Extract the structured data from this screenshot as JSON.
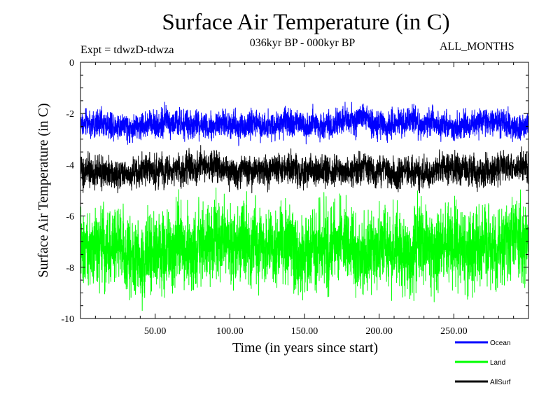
{
  "header": {
    "title": "Surface Air Temperature (in C)",
    "experiment": "Expt = tdwzD-tdwza",
    "period": "036kyr BP - 000kyr BP",
    "months": "ALL_MONTHS"
  },
  "chart_data": {
    "type": "line",
    "title": "Surface Air Temperature (in C)",
    "subtitle": "036kyr BP - 000kyr BP",
    "xlabel": "Time (in years since start)",
    "ylabel": "Surface Air Temperature (in C)",
    "xlim": [
      0,
      300
    ],
    "ylim": [
      -10,
      0
    ],
    "xticks": [
      50,
      100,
      150,
      200,
      250
    ],
    "xtick_labels": [
      "50.00",
      "100.00",
      "150.00",
      "200.00",
      "250.00"
    ],
    "yticks": [
      0,
      -2,
      -4,
      -6,
      -8,
      -10
    ],
    "ytick_labels": [
      "0",
      "-2",
      "-4",
      "-6",
      "-8",
      "-10"
    ],
    "grid": false,
    "legend_position": "bottom-right",
    "series": [
      {
        "name": "Ocean",
        "color": "#0000ff",
        "mean": -2.4,
        "noise_amplitude": 0.45,
        "min": -3.3,
        "max": -1.3
      },
      {
        "name": "Land",
        "color": "#00ff00",
        "mean": -7.2,
        "noise_amplitude": 1.3,
        "min": -9.9,
        "max": -4.9
      },
      {
        "name": "AllSurf",
        "color": "#000000",
        "mean": -4.2,
        "noise_amplitude": 0.5,
        "min": -5.1,
        "max": -3.2
      }
    ]
  }
}
